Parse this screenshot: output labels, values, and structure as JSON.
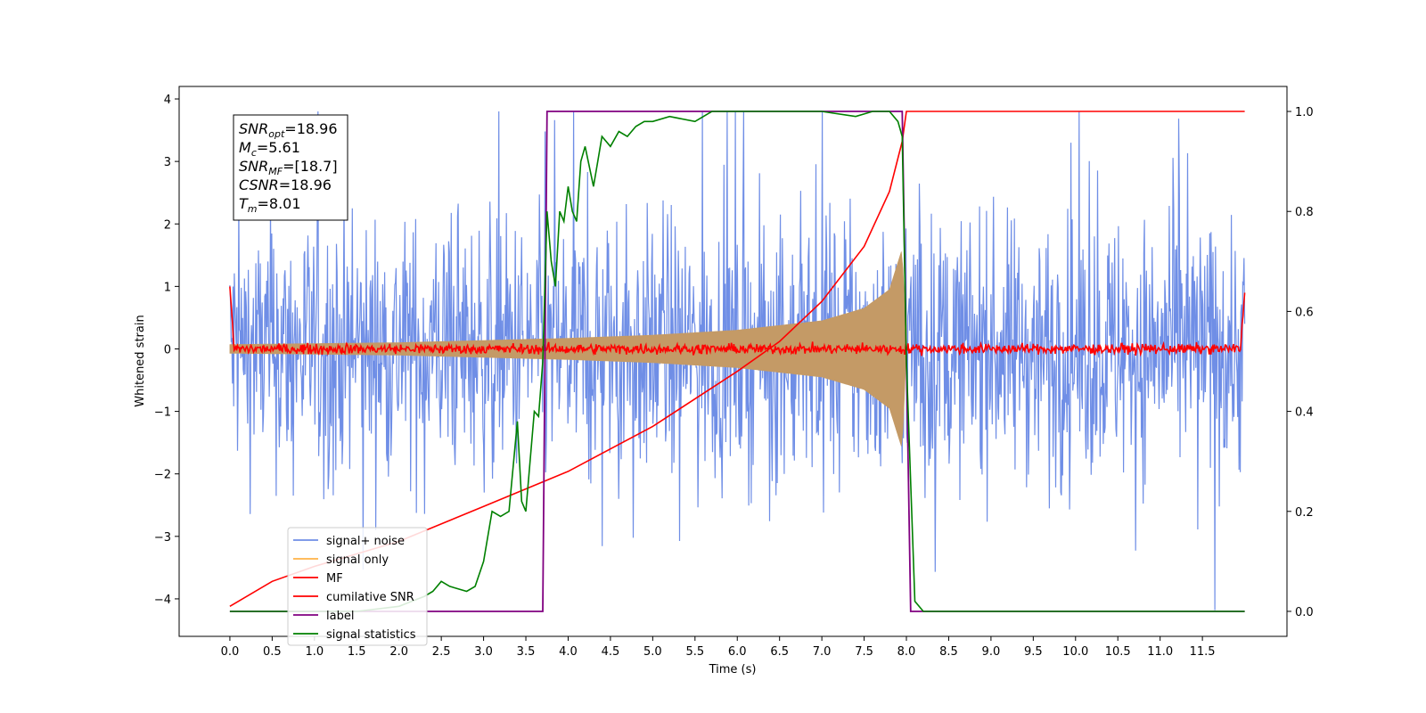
{
  "chart_data": {
    "type": "line",
    "title": "",
    "xlabel": "Time (s)",
    "ylabel_left": "Whitened strain",
    "ylabel_right": "",
    "xlim": [
      -0.6,
      12.5
    ],
    "ylim_left": [
      -4.6,
      4.2
    ],
    "ylim_right": [
      -0.05,
      1.05
    ],
    "x_ticks": [
      "0.0",
      "0.5",
      "1.0",
      "1.5",
      "2.0",
      "2.5",
      "3.0",
      "3.5",
      "4.0",
      "4.5",
      "5.0",
      "5.5",
      "6.0",
      "6.5",
      "7.0",
      "7.5",
      "8.0",
      "8.5",
      "9.0",
      "9.5",
      "10.0",
      "10.5",
      "11.0",
      "11.5"
    ],
    "y_left_ticks": [
      "4",
      "3",
      "2",
      "1",
      "0",
      "−1",
      "−2",
      "−3",
      "−4"
    ],
    "y_right_ticks": [
      "1.0",
      "0.8",
      "0.6",
      "0.4",
      "0.2",
      "0.0"
    ],
    "grid": false,
    "legend_position": "lower-left",
    "annotation": {
      "lines": [
        {
          "sym": "SNR",
          "sub": "opt",
          "val": "=18.96"
        },
        {
          "sym": "M",
          "sub": "c",
          "val": "=5.61"
        },
        {
          "sym": "SNR",
          "sub": "MF",
          "val": "=[18.7]"
        },
        {
          "sym": "CSNR",
          "sub": "",
          "val": "=18.96"
        },
        {
          "sym": "T",
          "sub": "m",
          "val": "=8.01"
        }
      ]
    },
    "series": [
      {
        "name": "signal+ noise",
        "color": "#6f8ee6",
        "axis": "left",
        "style": "noise band",
        "x_range": [
          0.0,
          12.0
        ],
        "amplitude_typical": 2.0,
        "amplitude_max": 3.8
      },
      {
        "name": "signal only",
        "color": "#c49a66",
        "axis": "left",
        "style": "chirp envelope",
        "x_range": [
          0.0,
          8.0
        ],
        "envelope": {
          "x": [
            0.0,
            2.0,
            4.0,
            5.0,
            6.0,
            7.0,
            7.5,
            7.8,
            7.95,
            8.0
          ],
          "y": [
            0.07,
            0.1,
            0.17,
            0.22,
            0.3,
            0.45,
            0.65,
            0.95,
            1.6,
            0.0
          ]
        }
      },
      {
        "name": "MF",
        "color": "#ff0000",
        "axis": "left",
        "style": "noisy baseline",
        "x_range": [
          0.0,
          12.0
        ],
        "level": 0.0,
        "edge_values": [
          1.0,
          0.9
        ]
      },
      {
        "name": "cumilative SNR",
        "color": "#ff0000",
        "axis": "right",
        "x": [
          0.0,
          0.5,
          1.0,
          2.0,
          3.0,
          4.0,
          5.0,
          6.0,
          6.5,
          7.0,
          7.5,
          7.8,
          7.95,
          8.0,
          12.0
        ],
        "y": [
          0.01,
          0.06,
          0.09,
          0.14,
          0.21,
          0.28,
          0.37,
          0.48,
          0.54,
          0.62,
          0.73,
          0.84,
          0.94,
          1.0,
          1.0
        ]
      },
      {
        "name": "label",
        "color": "#800080",
        "axis": "right",
        "x": [
          0.0,
          3.7,
          3.75,
          7.95,
          8.05,
          12.0
        ],
        "y": [
          0.0,
          0.0,
          1.0,
          1.0,
          0.0,
          0.0
        ]
      },
      {
        "name": "signal statistics",
        "color": "#008000",
        "axis": "right",
        "x": [
          0.0,
          1.0,
          1.5,
          2.0,
          2.3,
          2.4,
          2.5,
          2.6,
          2.8,
          2.9,
          3.0,
          3.1,
          3.2,
          3.3,
          3.4,
          3.45,
          3.5,
          3.6,
          3.65,
          3.7,
          3.75,
          3.8,
          3.85,
          3.9,
          3.95,
          4.0,
          4.05,
          4.1,
          4.15,
          4.2,
          4.3,
          4.35,
          4.4,
          4.5,
          4.6,
          4.7,
          4.8,
          4.9,
          5.0,
          5.2,
          5.5,
          5.7,
          6.0,
          6.3,
          6.6,
          7.0,
          7.4,
          7.6,
          7.8,
          7.9,
          7.95,
          8.0,
          8.1,
          8.2,
          8.5,
          12.0
        ],
        "y": [
          0.0,
          0.0,
          0.0,
          0.01,
          0.03,
          0.04,
          0.06,
          0.05,
          0.04,
          0.05,
          0.1,
          0.2,
          0.19,
          0.2,
          0.38,
          0.22,
          0.2,
          0.4,
          0.39,
          0.5,
          0.8,
          0.7,
          0.65,
          0.8,
          0.78,
          0.85,
          0.8,
          0.78,
          0.9,
          0.93,
          0.85,
          0.9,
          0.95,
          0.93,
          0.96,
          0.95,
          0.97,
          0.98,
          0.98,
          0.99,
          0.98,
          1.0,
          1.0,
          1.0,
          1.0,
          1.0,
          0.99,
          1.0,
          1.0,
          0.98,
          0.95,
          0.5,
          0.02,
          0.0,
          0.0,
          0.0
        ]
      }
    ]
  }
}
